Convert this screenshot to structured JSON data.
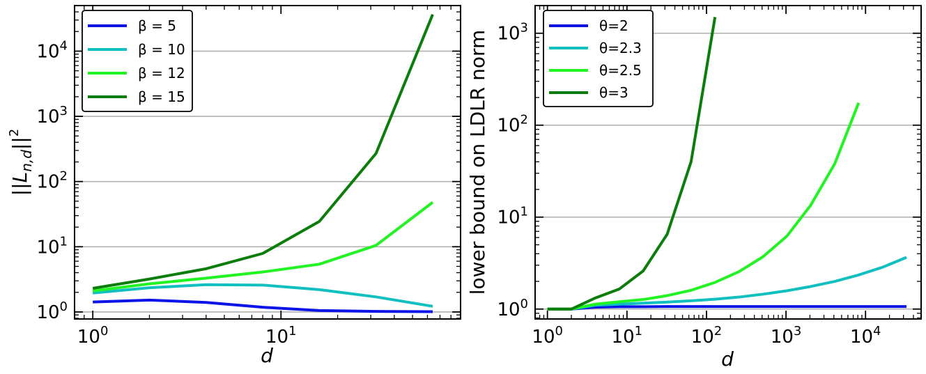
{
  "chart_data": [
    {
      "type": "line",
      "xscale": "log",
      "yscale": "log",
      "xlabel": "d",
      "ylabel": "||L_{n,d}||^2",
      "xlim": [
        0.8,
        90
      ],
      "ylim": [
        0.78,
        50000
      ],
      "xticks": [
        {
          "base": "10",
          "exp": "0"
        },
        {
          "base": "10",
          "exp": "1"
        }
      ],
      "yticks": [
        {
          "base": "10",
          "exp": "0"
        },
        {
          "base": "10",
          "exp": "1"
        },
        {
          "base": "10",
          "exp": "2"
        },
        {
          "base": "10",
          "exp": "3"
        },
        {
          "base": "10",
          "exp": "4"
        }
      ],
      "grid": "horizontal major",
      "legend_position": "top-left",
      "series": [
        {
          "name": "β = 5",
          "color": "#0a14e6",
          "x": [
            1,
            2,
            4,
            8,
            16,
            32,
            64
          ],
          "y": [
            1.42,
            1.52,
            1.4,
            1.18,
            1.05,
            1.02,
            1.01
          ]
        },
        {
          "name": "β = 10",
          "color": "#10bfbf",
          "x": [
            1,
            2,
            4,
            8,
            16,
            32,
            64
          ],
          "y": [
            1.95,
            2.35,
            2.62,
            2.58,
            2.2,
            1.7,
            1.22
          ]
        },
        {
          "name": "β = 12",
          "color": "#22f322",
          "x": [
            1,
            2,
            4,
            8,
            16,
            32,
            64
          ],
          "y": [
            2.1,
            2.7,
            3.3,
            4.1,
            5.4,
            10.5,
            48
          ]
        },
        {
          "name": "β = 15",
          "color": "#0a7d0a",
          "x": [
            1,
            2,
            4,
            8,
            16,
            32,
            64
          ],
          "y": [
            2.3,
            3.2,
            4.6,
            7.9,
            24.5,
            270,
            36500
          ]
        }
      ]
    },
    {
      "type": "line",
      "xscale": "log",
      "yscale": "log",
      "xlabel": "d",
      "ylabel": "lower bound on LDLR norm",
      "xlim": [
        0.7,
        50000
      ],
      "ylim": [
        0.78,
        2000
      ],
      "xticks": [
        {
          "base": "10",
          "exp": "0"
        },
        {
          "base": "10",
          "exp": "1"
        },
        {
          "base": "10",
          "exp": "2"
        },
        {
          "base": "10",
          "exp": "3"
        },
        {
          "base": "10",
          "exp": "4"
        }
      ],
      "yticks": [
        {
          "base": "10",
          "exp": "0"
        },
        {
          "base": "10",
          "exp": "1"
        },
        {
          "base": "10",
          "exp": "2"
        },
        {
          "base": "10",
          "exp": "3"
        }
      ],
      "grid": "horizontal major",
      "legend_position": "top-left",
      "series": [
        {
          "name": "θ=2",
          "color": "#0a14e6",
          "x": [
            1,
            2,
            4,
            8,
            16,
            32,
            64,
            128,
            256,
            512,
            1024,
            2048,
            4096,
            8192,
            16384,
            32768
          ],
          "y": [
            1.0,
            1.0,
            1.05,
            1.06,
            1.06,
            1.065,
            1.065,
            1.066,
            1.066,
            1.066,
            1.066,
            1.066,
            1.066,
            1.066,
            1.066,
            1.066
          ]
        },
        {
          "name": "θ=2.3",
          "color": "#10bfbf",
          "x": [
            1,
            2,
            4,
            8,
            16,
            32,
            64,
            128,
            256,
            512,
            1024,
            2048,
            4096,
            8192,
            16384,
            32768
          ],
          "y": [
            1.0,
            1.0,
            1.1,
            1.13,
            1.16,
            1.19,
            1.23,
            1.28,
            1.35,
            1.45,
            1.58,
            1.76,
            2.0,
            2.35,
            2.85,
            3.65
          ]
        },
        {
          "name": "θ=2.5",
          "color": "#22f322",
          "x": [
            1,
            2,
            4,
            8,
            16,
            32,
            64,
            128,
            256,
            512,
            1024,
            2048,
            4096,
            8192
          ],
          "y": [
            1.0,
            1.0,
            1.13,
            1.2,
            1.27,
            1.4,
            1.6,
            1.95,
            2.55,
            3.7,
            6.2,
            13.5,
            38,
            175
          ]
        },
        {
          "name": "θ=3",
          "color": "#0a7d0a",
          "x": [
            1,
            2,
            4,
            8,
            16,
            32,
            64,
            128
          ],
          "y": [
            1.0,
            1.0,
            1.32,
            1.65,
            2.6,
            6.5,
            40,
            1500
          ]
        }
      ]
    }
  ]
}
